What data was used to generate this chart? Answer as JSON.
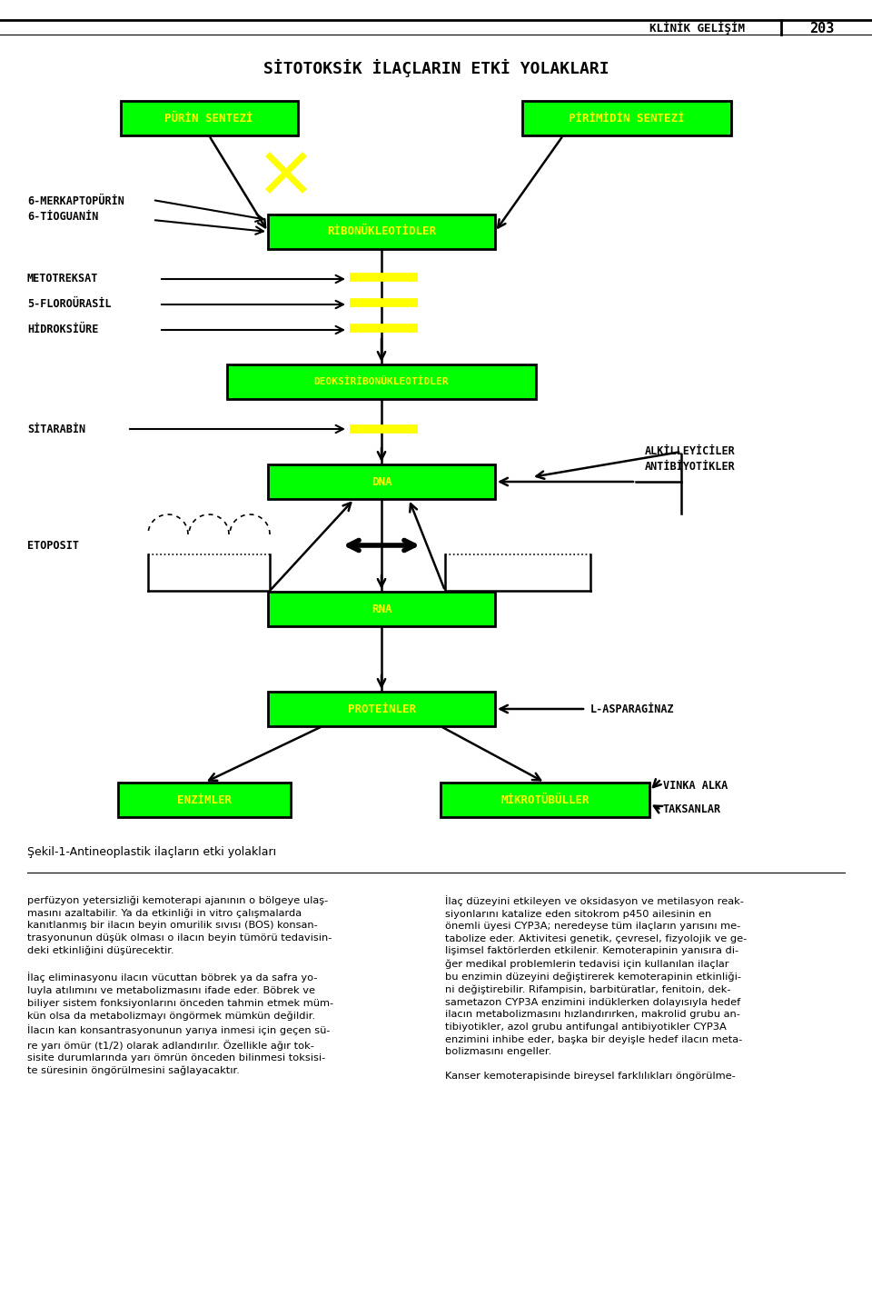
{
  "title": "SİTOTOKSİK İLAÇLARIN ETKİ YOLAKLARI",
  "header_text": "KLİNİK GELİŞİM",
  "header_num": "203",
  "green_color": "#00FF00",
  "yellow_color": "#FFFF00",
  "figure_caption": "Şekil-1-Antineoplastik ilaçların etki yolakları",
  "left_col_text": "perfüzyon yetersizliği kemoterapi ajanının o bölgeye ulaş-\nmasını azaltabilir. Ya da etkinliği in vitro çalışmalarda\nkanıtlanmış bir ilacın beyin omurilik sıvısı (BOS) konsan-\ntrasyonunun düşük olması o ilacın beyin tümörü tedavisin-\ndeki etkinliğini düşürecektir.\n\nİlaç eliminasyonu ilacın vücuttan böbrek ya da safra yo-\nluyla atılımını ve metabolizmasını ifade eder. Böbrek ve\nbiliyer sistem fonksiyonlarını önceden tahmin etmek müm-\nkün olsa da metabolizmayı öngörmek mümkün değildir.\nİlacın kan konsantrasyonunun yarıya inmesi için geçen sü-\nre yarı ömür (t1/2) olarak adlandırılır. Özellikle ağır tok-\nsisite durumlarında yarı ömrün önceden bilinmesi toksisi-\nte süresinin öngörülmesini sağlayacaktır.",
  "right_col_text": "İlaç düzeyini etkileyen ve oksidasyon ve metilasyon reak-\nsiyonlarını katalize eden sitokrom p450 ailesinin en\nönemli üyesi CYP3A; neredeyse tüm ilaçların yarısını me-\ntabolize eder. Aktivitesi genetik, çevresel, fizyolojik ve ge-\nlişimsel faktörlerden etkilenir. Kemoterapinin yanısıra di-\nğer medikal problemlerin tedavisi için kullanılan ilaçlar\nbu enzimin düzeyini değiştirerek kemoterapinin etkinliği-\nni değiştirebilir. Rifampisin, barbitüratlar, fenitoin, dek-\nsametazon CYP3A enzimini indüklerken dolayısıyla hedef\nilacın metabolizmasını hızlandırırken, makrolid grubu an-\ntibiyotikler, azol grubu antifungal antibiyotikler CYP3A\nenzimini inhibe eder, başka bir deyişle hedef ilacın meta-\nbolizmasını engeller.\n\nKanser kemoterapisinde bireysel farklılıkları öngörülme-"
}
